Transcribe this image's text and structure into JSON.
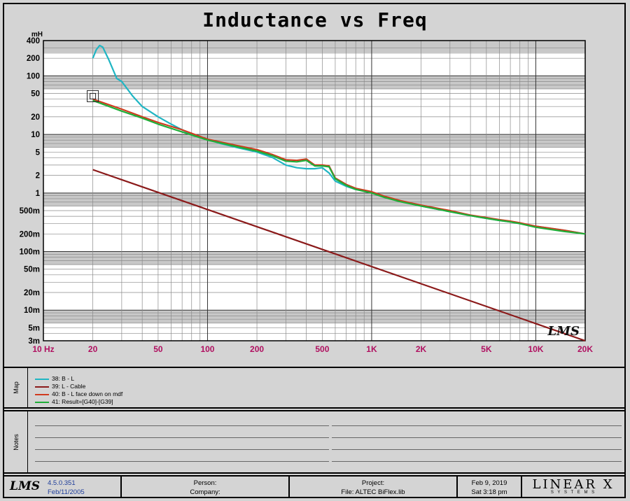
{
  "page": {
    "title": "Inductance vs Freq"
  },
  "chart_data": {
    "type": "line",
    "title": "Inductance vs Freq",
    "yunit_label": "mH",
    "xscale": "log",
    "yscale": "log",
    "xlim": [
      10,
      20000
    ],
    "ylim": [
      0.003,
      400
    ],
    "grid": true,
    "x_tick_labels": [
      {
        "v": 10,
        "t": "10 Hz"
      },
      {
        "v": 20,
        "t": "20"
      },
      {
        "v": 50,
        "t": "50"
      },
      {
        "v": 100,
        "t": "100"
      },
      {
        "v": 200,
        "t": "200"
      },
      {
        "v": 500,
        "t": "500"
      },
      {
        "v": 1000,
        "t": "1K"
      },
      {
        "v": 2000,
        "t": "2K"
      },
      {
        "v": 5000,
        "t": "5K"
      },
      {
        "v": 10000,
        "t": "10K"
      },
      {
        "v": 20000,
        "t": "20K"
      }
    ],
    "y_tick_labels": [
      {
        "v": 400,
        "t": "400"
      },
      {
        "v": 200,
        "t": "200"
      },
      {
        "v": 100,
        "t": "100"
      },
      {
        "v": 50,
        "t": "50"
      },
      {
        "v": 20,
        "t": "20"
      },
      {
        "v": 10,
        "t": "10"
      },
      {
        "v": 5,
        "t": "5"
      },
      {
        "v": 2,
        "t": "2"
      },
      {
        "v": 1,
        "t": "1"
      },
      {
        "v": 0.5,
        "t": "500m"
      },
      {
        "v": 0.2,
        "t": "200m"
      },
      {
        "v": 0.1,
        "t": "100m"
      },
      {
        "v": 0.05,
        "t": "50m"
      },
      {
        "v": 0.02,
        "t": "20m"
      },
      {
        "v": 0.01,
        "t": "10m"
      },
      {
        "v": 0.005,
        "t": "5m"
      },
      {
        "v": 0.003,
        "t": "3m"
      }
    ],
    "series": [
      {
        "name": "38: B - L",
        "color": "#1fb5c3",
        "x": [
          20,
          21,
          22,
          23,
          25,
          28,
          30,
          35,
          40,
          50,
          60,
          70,
          80,
          100,
          120,
          150,
          200,
          250,
          300,
          350,
          400,
          450,
          500,
          550,
          600,
          700,
          800,
          1000,
          1200,
          1500,
          2000,
          3000,
          4000,
          5000,
          6000,
          7000,
          8000,
          10000,
          15000,
          20000
        ],
        "y": [
          200,
          280,
          330,
          310,
          190,
          90,
          80,
          45,
          30,
          20,
          15,
          12,
          10,
          8.2,
          7,
          6,
          5,
          4,
          3,
          2.7,
          2.6,
          2.6,
          2.7,
          2.2,
          1.6,
          1.3,
          1.15,
          1.02,
          0.85,
          0.72,
          0.6,
          0.48,
          0.41,
          0.37,
          0.34,
          0.32,
          0.3,
          0.27,
          0.23,
          0.2
        ]
      },
      {
        "name": "39: L - Cable",
        "color": "#8b1a1a",
        "x": [
          20,
          20000
        ],
        "y": [
          2.5,
          0.003
        ]
      },
      {
        "name": "40: B - L  face down on mdf",
        "color": "#d03a1e",
        "x": [
          20,
          30,
          40,
          50,
          70,
          100,
          150,
          200,
          250,
          300,
          350,
          400,
          450,
          500,
          550,
          600,
          700,
          800,
          1000,
          1200,
          1500,
          2000,
          3000,
          4000,
          5000,
          6000,
          7000,
          8000,
          10000,
          15000,
          20000
        ],
        "y": [
          40,
          27,
          20,
          16,
          12,
          8.3,
          6.5,
          5.5,
          4.5,
          3.7,
          3.6,
          3.8,
          3.0,
          3.0,
          2.9,
          1.8,
          1.4,
          1.2,
          1.05,
          0.88,
          0.74,
          0.62,
          0.5,
          0.42,
          0.38,
          0.35,
          0.33,
          0.31,
          0.27,
          0.23,
          0.2
        ]
      },
      {
        "name": "41: Result=[G40]-[G39]",
        "color": "#1fae38",
        "x": [
          20,
          30,
          40,
          50,
          70,
          100,
          150,
          200,
          250,
          300,
          350,
          400,
          450,
          500,
          550,
          600,
          700,
          800,
          1000,
          1200,
          1500,
          2000,
          3000,
          4000,
          5000,
          6000,
          7000,
          8000,
          10000,
          15000,
          20000
        ],
        "y": [
          38,
          25,
          19,
          15,
          11,
          8.0,
          6.2,
          5.2,
          4.3,
          3.5,
          3.4,
          3.6,
          2.9,
          2.9,
          2.8,
          1.75,
          1.35,
          1.15,
          1.0,
          0.84,
          0.71,
          0.6,
          0.48,
          0.41,
          0.37,
          0.34,
          0.32,
          0.3,
          0.26,
          0.22,
          0.2
        ]
      }
    ],
    "cursor_marker": {
      "x": 20,
      "y": 45
    }
  },
  "legend_panel": {
    "label": "Map"
  },
  "notes_panel": {
    "label": "Notes"
  },
  "watermark": "LMS",
  "footer": {
    "logo": "LMS",
    "version": "4.5.0.351",
    "build_date": "Feb/11/2005",
    "person_label": "Person:",
    "company_label": "Company:",
    "project_label": "Project:",
    "file_text": "File: ALTEC BiFlex.lib",
    "date": "Feb  9, 2019",
    "time": "Sat  3:18 pm",
    "brand": "LINEAR X",
    "brand_sub": "S Y S T E M S"
  }
}
